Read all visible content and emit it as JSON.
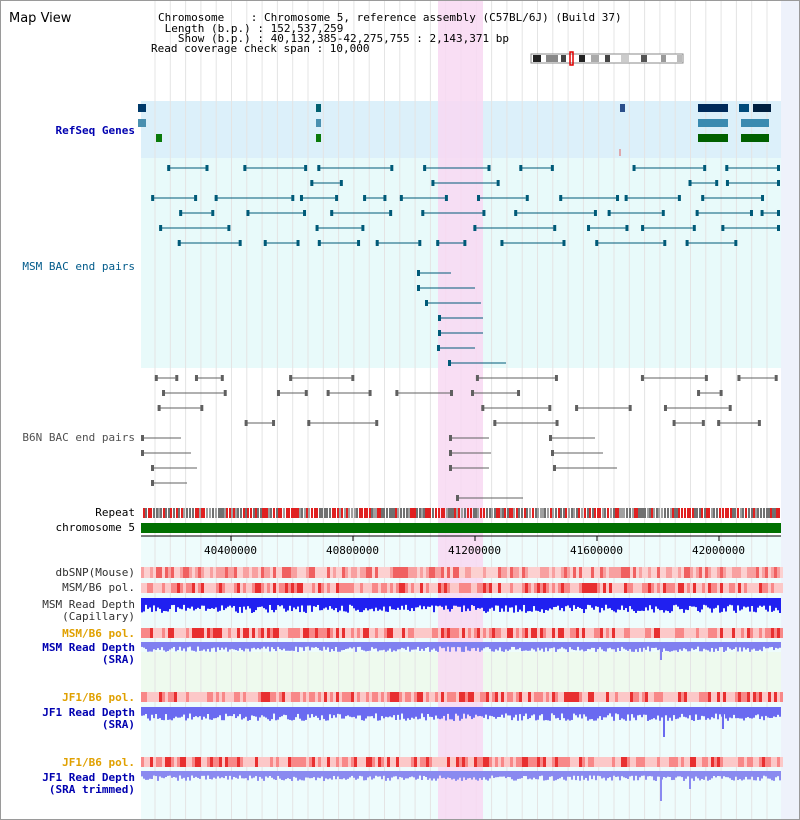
{
  "header": {
    "title": "Map View",
    "info_lines": [
      "Chromosome    : Chromosome 5, reference assembly (C57BL/6J) (Build 37)",
      " Length (b.p.) : 152,537,259",
      "   Show (b.p.) : 40,132,385-42,275,755 : 2,143,371 bp",
      "Read coverage check span : 10,000"
    ]
  },
  "tracks": {
    "refseq": "RefSeq Genes",
    "msm_bac": "MSM BAC end pairs",
    "b6n_bac": "B6N BAC end pairs",
    "repeat": "Repeat",
    "chromosome": "chromosome 5",
    "dbsnp": "dbSNP(Mouse)",
    "msm_b6_pol_1": "MSM/B6 pol.",
    "msm_read_depth_cap": "MSM Read Depth\n(Capillary)",
    "msm_b6_pol_2": "MSM/B6 pol.",
    "msm_read_depth_sra": "MSM Read Depth\n(SRA)",
    "jf1_b6_pol_1": "JF1/B6 pol.",
    "jf1_read_depth_sra": "JF1 Read Depth\n(SRA)",
    "jf1_b6_pol_2": "JF1/B6 pol.",
    "jf1_read_depth_trim": "JF1 Read Depth\n(SRA trimmed)"
  },
  "axis": {
    "ticks": [
      "40400000",
      "40800000",
      "41200000",
      "41600000",
      "42000000"
    ]
  },
  "colors": {
    "highlight": "#f8d8f2",
    "refseq_bg": "#dcf0fa",
    "bac_bg": "#e8fafa",
    "teal": "#005a78",
    "chromosome": "#007000",
    "read_depth_cap": "#2020f0",
    "read_depth_sra": "#8080f0"
  }
}
